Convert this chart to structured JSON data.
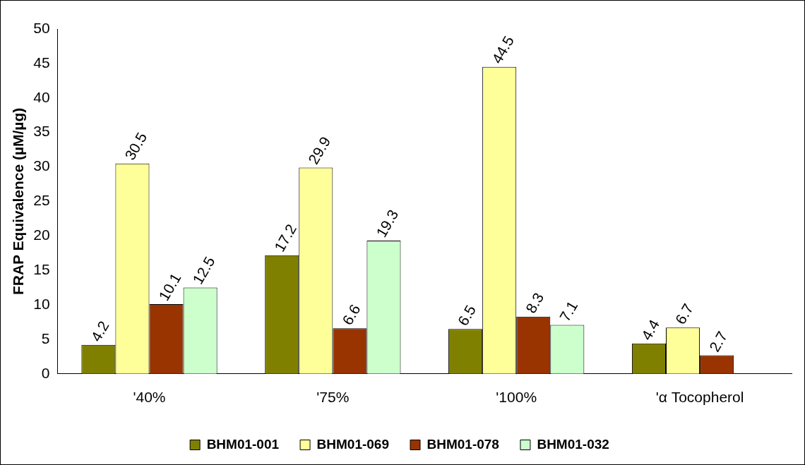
{
  "chart_data": {
    "type": "bar",
    "ylabel": "FRAP Equivalence (µM/µg)",
    "categories": [
      "'40%",
      "'75%",
      "'100%",
      "'α Tocopherol"
    ],
    "series": [
      {
        "name": "BHM01-001",
        "color": "#808000",
        "values": [
          4.2,
          17.2,
          6.5,
          4.4
        ]
      },
      {
        "name": "BHM01-069",
        "color": "#ffff99",
        "values": [
          30.5,
          29.9,
          44.5,
          6.7
        ]
      },
      {
        "name": "BHM01-078",
        "color": "#993300",
        "values": [
          10.1,
          6.6,
          8.3,
          2.7
        ]
      },
      {
        "name": "BHM01-032",
        "color": "#ccffcc",
        "values": [
          12.5,
          19.3,
          7.1,
          null
        ]
      }
    ],
    "ylim": [
      0,
      50
    ],
    "yticks": [
      0,
      5,
      10,
      15,
      20,
      25,
      30,
      35,
      40,
      45,
      50
    ],
    "grid": false,
    "legend": "bottom",
    "data_labels": true
  }
}
